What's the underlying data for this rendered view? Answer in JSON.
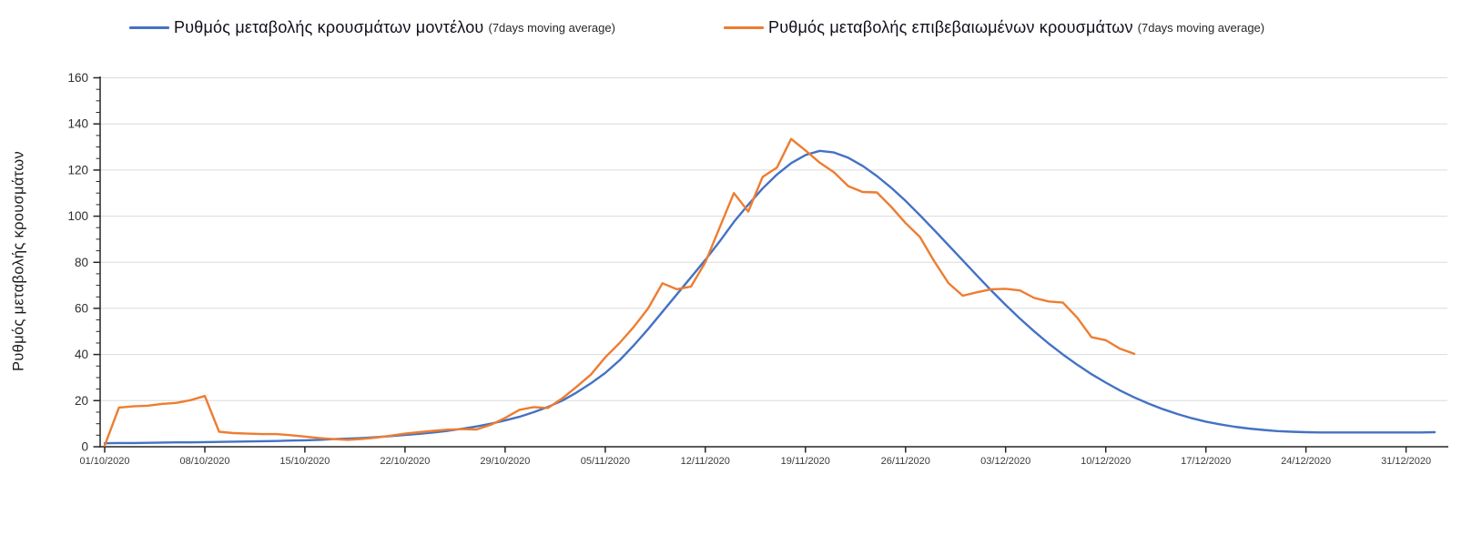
{
  "legend": [
    {
      "label": "Ρυθμός μεταβολής κρουσμάτων μοντέλου",
      "suffix": "(7days moving average)",
      "color": "#4472c4"
    },
    {
      "label": "Ρυθμός μεταβολής επιβεβαιωμένων κρουσμάτων",
      "suffix": "(7days moving average)",
      "color": "#ed7d31"
    }
  ],
  "chart_data": {
    "type": "line",
    "title": "",
    "xlabel": "",
    "ylabel": "Ρυθμός μεταβολής κρουσμάτων",
    "ylim": [
      0,
      160
    ],
    "ytick_step": 20,
    "y_minor_step": 5,
    "grid": true,
    "legend_position": "top",
    "x_start_date": "01/10/2020",
    "x_tick_labels": [
      "01/10/2020",
      "08/10/2020",
      "15/10/2020",
      "22/10/2020",
      "29/10/2020",
      "05/11/2020",
      "12/11/2020",
      "19/11/2020",
      "26/11/2020",
      "03/12/2020",
      "10/12/2020",
      "17/12/2020",
      "24/12/2020",
      "31/12/2020"
    ],
    "x_tick_days": [
      0,
      7,
      14,
      21,
      28,
      35,
      42,
      49,
      56,
      63,
      70,
      77,
      84,
      91
    ],
    "series": [
      {
        "name": "Ρυθμός μεταβολής κρουσμάτων μοντέλου (7days moving average)",
        "color": "#4472c4",
        "start_day": 0,
        "values": [
          1.5,
          1.6,
          1.6,
          1.7,
          1.8,
          1.9,
          1.9,
          2.0,
          2.1,
          2.2,
          2.3,
          2.4,
          2.5,
          2.7,
          2.8,
          3.0,
          3.3,
          3.5,
          3.8,
          4.2,
          4.6,
          5.1,
          5.6,
          6.2,
          6.9,
          7.8,
          8.8,
          10.0,
          11.4,
          13.0,
          15.0,
          17.3,
          20.0,
          23.5,
          27.5,
          32.0,
          37.5,
          44.0,
          51.0,
          58.5,
          66.0,
          73.5,
          81.0,
          89.0,
          97.5,
          105.0,
          112.0,
          118.0,
          123.0,
          126.5,
          128.3,
          127.6,
          125.3,
          121.8,
          117.4,
          112.3,
          106.6,
          100.4,
          94.0,
          87.4,
          80.8,
          74.2,
          67.7,
          61.5,
          55.6,
          50.0,
          44.8,
          40.0,
          35.6,
          31.5,
          27.8,
          24.4,
          21.4,
          18.7,
          16.3,
          14.2,
          12.4,
          10.9,
          9.7,
          8.7,
          7.9,
          7.3,
          6.8,
          6.5,
          6.3,
          6.2,
          6.2,
          6.2,
          6.2,
          6.2,
          6.2,
          6.2,
          6.2,
          6.3
        ]
      },
      {
        "name": "Ρυθμός μεταβολής επιβεβαιωμένων κρουσμάτων (7days moving average)",
        "color": "#ed7d31",
        "start_day": 0,
        "values": [
          0.5,
          17.0,
          17.5,
          17.8,
          18.6,
          19.0,
          20.2,
          22.0,
          6.5,
          5.9,
          5.7,
          5.5,
          5.5,
          5.0,
          4.4,
          3.8,
          3.3,
          3.0,
          3.4,
          4.0,
          4.8,
          5.7,
          6.3,
          6.9,
          7.4,
          7.6,
          7.5,
          9.5,
          12.5,
          16.0,
          17.2,
          16.8,
          21.0,
          26.0,
          31.3,
          38.8,
          45.0,
          52.0,
          60.0,
          70.9,
          68.3,
          69.5,
          80.0,
          95.0,
          110.0,
          102.0,
          117.0,
          121.0,
          133.5,
          128.5,
          123.2,
          119.0,
          113.0,
          110.5,
          110.3,
          104.0,
          97.0,
          91.0,
          80.5,
          71.0,
          65.5,
          67.0,
          68.3,
          68.5,
          67.8,
          64.5,
          63.0,
          62.5,
          56.0,
          47.5,
          46.2,
          42.5,
          40.3
        ]
      }
    ]
  }
}
